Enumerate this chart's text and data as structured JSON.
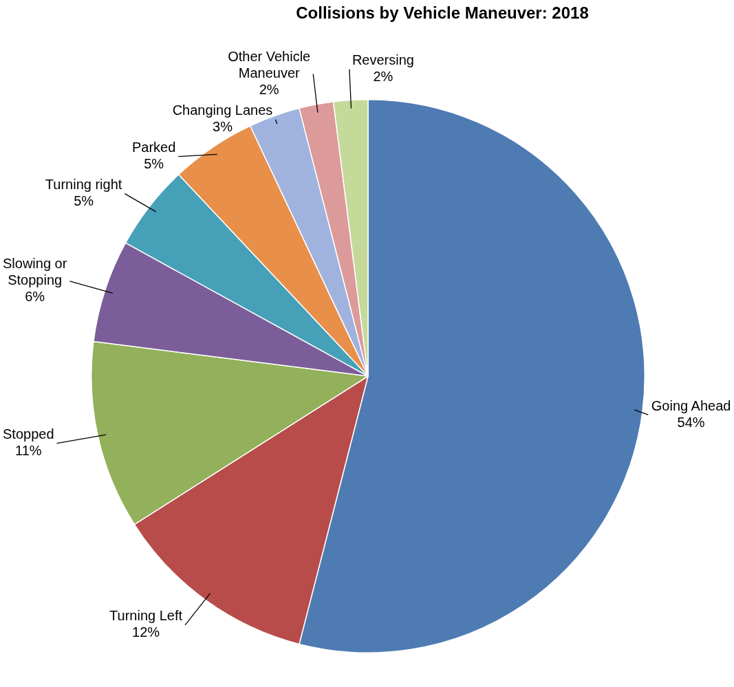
{
  "chart_data": {
    "type": "pie",
    "title": "Collisions by Vehicle Maneuver: 2018",
    "categories": [
      "Going Ahead",
      "Turning Left",
      "Stopped",
      "Slowing or Stopping",
      "Turning right",
      "Parked",
      "Changing Lanes",
      "Other Vehicle Maneuver",
      "Reversing"
    ],
    "values": [
      54,
      12,
      11,
      6,
      5,
      5,
      3,
      2,
      2
    ],
    "colors": [
      "#4f7bb3",
      "#b84c4a",
      "#93b05a",
      "#7b5e99",
      "#46a0b8",
      "#e8904a",
      "#9fb3de",
      "#dc9a9a",
      "#c5d99a"
    ],
    "value_labels": [
      "54%",
      "12%",
      "11%",
      "6%",
      "5%",
      "5%",
      "3%",
      "2%",
      "2%"
    ],
    "legend": false
  }
}
